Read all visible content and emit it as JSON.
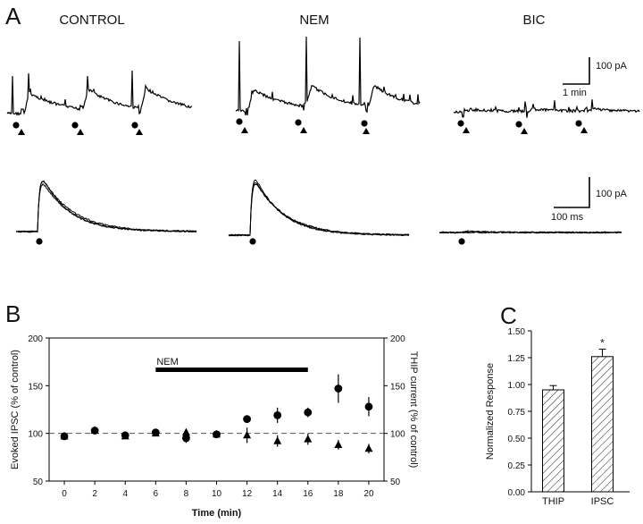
{
  "panels": {
    "A": {
      "letter": "A",
      "conditions": [
        "CONTROL",
        "NEM",
        "BIC"
      ],
      "scale_top": {
        "current": "100 pA",
        "time": "1 min"
      },
      "scale_bottom": {
        "current": "100 pA",
        "time": "100 ms"
      }
    },
    "B": {
      "letter": "B"
    },
    "C": {
      "letter": "C"
    }
  },
  "chart_data": [
    {
      "id": "B",
      "type": "scatter",
      "xlabel": "Time (min)",
      "ylabel_left": "Evoked IPSC (% of control)",
      "ylabel_right": "THIP current (% of control)",
      "xlim": [
        -1,
        21
      ],
      "ylim": [
        50,
        200
      ],
      "xticks": [
        0,
        2,
        4,
        6,
        8,
        10,
        12,
        14,
        16,
        18,
        20
      ],
      "yticks": [
        50,
        100,
        150,
        200
      ],
      "reference_line": 100,
      "annotation": {
        "label": "NEM",
        "start": 6,
        "end": 16
      },
      "series": [
        {
          "name": "Evoked IPSC",
          "marker": "circle",
          "x": [
            0,
            2,
            4,
            6,
            8,
            10,
            12,
            14,
            16,
            18,
            20
          ],
          "values": [
            97,
            103,
            98,
            101,
            95,
            99,
            115,
            119,
            122,
            147,
            128
          ],
          "errors": [
            3,
            3,
            3,
            3,
            5,
            3,
            3,
            8,
            5,
            15,
            10
          ]
        },
        {
          "name": "THIP current",
          "marker": "triangle",
          "x": [
            0,
            2,
            4,
            6,
            8,
            10,
            12,
            14,
            16,
            18,
            20
          ],
          "values": [
            97,
            103,
            97,
            100,
            101,
            99,
            98,
            92,
            94,
            88,
            84
          ],
          "errors": [
            2,
            2,
            2,
            2,
            3,
            3,
            8,
            6,
            6,
            5,
            5
          ]
        }
      ]
    },
    {
      "id": "C",
      "type": "bar",
      "ylabel": "Normalized Response",
      "categories": [
        "THIP",
        "IPSC"
      ],
      "values": [
        0.95,
        1.26
      ],
      "errors": [
        0.04,
        0.07
      ],
      "ylim": [
        0,
        1.5
      ],
      "yticks": [
        "0.00",
        "0.25",
        "0.50",
        "0.75",
        "1.00",
        "1.25",
        "1.50"
      ],
      "significance": [
        "",
        "*"
      ]
    }
  ]
}
